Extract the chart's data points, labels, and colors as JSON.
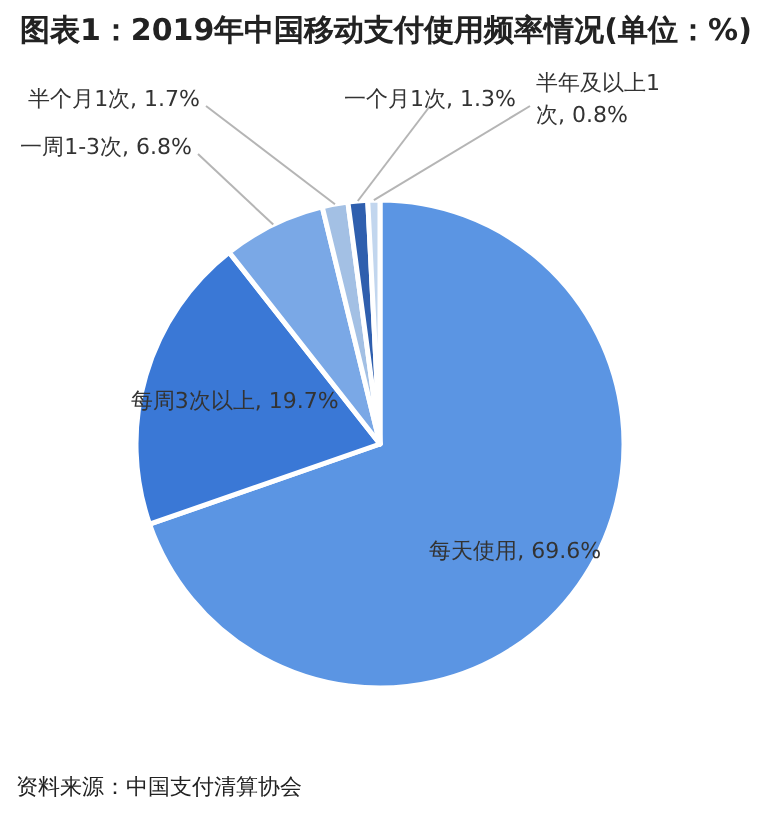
{
  "chart_data": {
    "type": "pie",
    "title": "图表1：2019年中国移动支付使用频率情况(单位：%)",
    "categories": [
      "每天使用",
      "每周3次以上",
      "一周1-3次",
      "半个月1次",
      "一个月1次",
      "半年及以上1次"
    ],
    "values": [
      69.6,
      19.7,
      6.8,
      1.7,
      1.3,
      0.8
    ],
    "value_labels": [
      "69.6%",
      "19.7%",
      "6.8%",
      "1.7%",
      "1.3%",
      "0.8%"
    ],
    "colors": [
      "#5b95e3",
      "#3a78d6",
      "#7aa8e6",
      "#a3c0e4",
      "#2f5fae",
      "#c2d6ee"
    ],
    "annotations": [
      "资料来源：中国支付清算协会"
    ]
  }
}
